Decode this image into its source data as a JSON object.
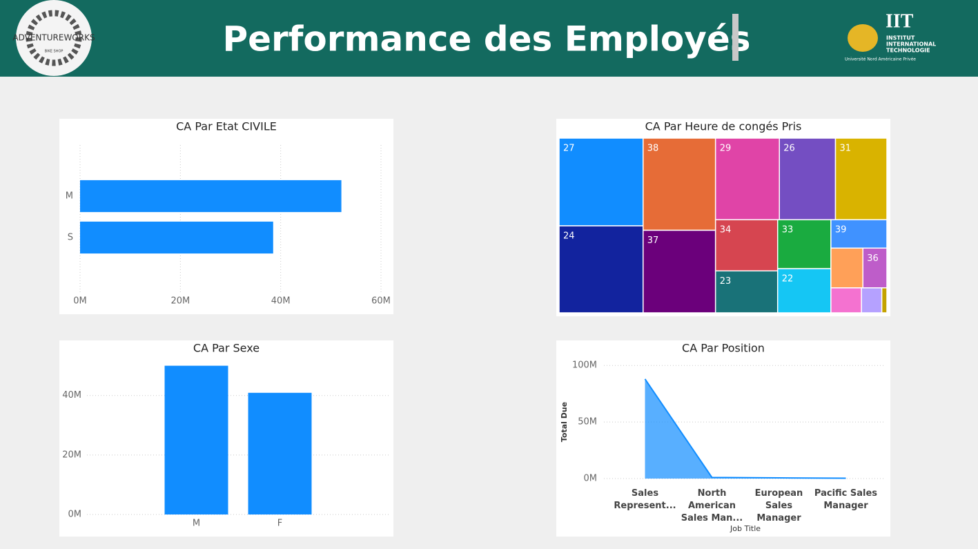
{
  "header": {
    "title": "Performance des Employés",
    "left_logo": {
      "name": "ADVENTUREWORKS",
      "tagline": "BIKE SHOP"
    },
    "right_logo": {
      "name": "IIT",
      "lines": [
        "INSTITUT",
        "INTERNATIONAL",
        "TECHNOLOGIE"
      ],
      "footer": "Université Nord Américaine Privée"
    }
  },
  "chart_data": [
    {
      "type": "bar",
      "horizontal": true,
      "title": "CA Par Etat CIVILE",
      "categories": [
        "M",
        "S"
      ],
      "values": [
        52100000,
        38500000
      ],
      "color": "#118DFF",
      "xlim": [
        0,
        60000000
      ],
      "xticks": [
        {
          "value": 0,
          "label": "0M"
        },
        {
          "value": 20000000,
          "label": "20M"
        },
        {
          "value": 40000000,
          "label": "40M"
        },
        {
          "value": 60000000,
          "label": "60M"
        }
      ],
      "grid": true
    },
    {
      "type": "treemap",
      "title": "CA Par Heure de congés Pris",
      "categories": [
        "27",
        "24",
        "38",
        "37",
        "29",
        "26",
        "31",
        "34",
        "23",
        "33",
        "22",
        "39",
        null,
        "36",
        null,
        null,
        null
      ],
      "values": [
        11600000,
        11500000,
        10500000,
        9400000,
        8200000,
        7200000,
        6600000,
        5000000,
        4100000,
        4100000,
        3700000,
        2500000,
        2000000,
        1500000,
        1200000,
        800000,
        200000
      ],
      "colors": [
        "#118DFF",
        "#12239E",
        "#E66C37",
        "#6B007B",
        "#E044A7",
        "#744EC2",
        "#D9B300",
        "#D64550",
        "#197278",
        "#1AAB40",
        "#15C6F4",
        "#4092FF",
        "#FFA058",
        "#BE5DC9",
        "#F472D0",
        "#B5A1FF",
        "#C4A200"
      ]
    },
    {
      "type": "bar",
      "horizontal": false,
      "title": "CA Par Sexe",
      "categories": [
        "M",
        "F"
      ],
      "values": [
        50000000,
        40900000
      ],
      "color": "#118DFF",
      "ylim": [
        0,
        52000000
      ],
      "yticks": [
        {
          "value": 0,
          "label": "0M"
        },
        {
          "value": 20000000,
          "label": "20M"
        },
        {
          "value": 40000000,
          "label": "40M"
        }
      ],
      "grid": true
    },
    {
      "type": "area",
      "title": "CA Par Position",
      "xlabel": "Job Title",
      "ylabel": "Total Due",
      "categories": [
        "Sales Represent...",
        "North American Sales Man...",
        "European Sales Manager",
        "Pacific Sales Manager"
      ],
      "values": [
        88000000,
        1000000,
        600000,
        300000
      ],
      "color": "#118DFF",
      "ylim": [
        0,
        105000000
      ],
      "yticks": [
        {
          "value": 0,
          "label": "0M"
        },
        {
          "value": 50000000,
          "label": "50M"
        },
        {
          "value": 100000000,
          "label": "100M"
        }
      ],
      "grid": true
    }
  ]
}
